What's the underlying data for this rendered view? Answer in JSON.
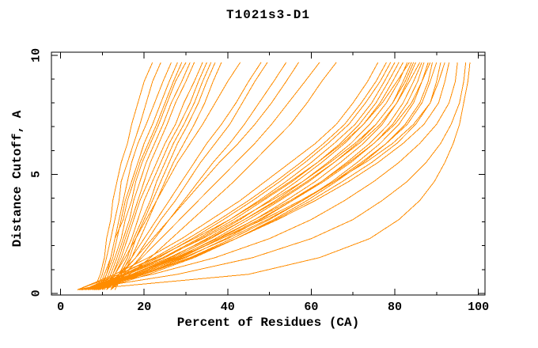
{
  "title": "T1021s3-D1",
  "chart_data": {
    "type": "line",
    "title": "T1021s3-D1",
    "xlabel": "Percent of Residues (CA)",
    "ylabel": "Distance Cutoff, A",
    "xlim": [
      -2.2,
      101.6
    ],
    "ylim": [
      -0.07,
      10.13
    ],
    "x_major_ticks": [
      0,
      20,
      40,
      60,
      80,
      100
    ],
    "x_minor_ticks": [
      10,
      30,
      50,
      70,
      90
    ],
    "y_major_ticks": [
      0,
      5,
      10
    ],
    "y_minor_ticks": [
      1,
      2,
      3,
      4,
      6,
      7,
      8,
      9
    ],
    "grid": "off",
    "legend": "none",
    "line_color": "#ff8c00",
    "axis_color": "#000000",
    "background_color": "#ffffff",
    "y_grid": [
      0.15,
      0.8,
      1.5,
      2.3,
      3.1,
      3.9,
      4.7,
      5.5,
      6.3,
      7.1,
      8.0,
      8.9,
      9.7
    ],
    "series_x": [
      [
        8,
        9.5,
        10.5,
        11,
        12,
        12.5,
        13.5,
        14.5,
        16,
        17,
        18.5,
        20,
        22
      ],
      [
        8.5,
        10,
        11,
        12,
        13,
        14,
        14.5,
        16,
        17.5,
        19,
        20.5,
        22,
        24
      ],
      [
        9,
        10.5,
        12,
        13,
        14,
        15,
        16,
        17,
        18.5,
        20.5,
        22.5,
        24.5,
        26.5
      ],
      [
        9,
        11,
        12.5,
        13.5,
        14.5,
        15.5,
        17,
        18.5,
        20,
        22,
        24,
        26,
        28
      ],
      [
        10,
        11.5,
        13,
        14.5,
        15.5,
        17,
        18,
        19.5,
        21.5,
        23.5,
        25.5,
        27.5,
        30
      ],
      [
        10,
        12,
        13.5,
        15,
        16.5,
        17.5,
        19,
        20.5,
        22.5,
        24.5,
        26.5,
        29,
        31
      ],
      [
        11,
        12.5,
        14,
        15.5,
        17,
        18.5,
        20,
        21.5,
        23.5,
        25.5,
        27.5,
        30,
        32
      ],
      [
        10.5,
        12.5,
        14.5,
        16,
        17.5,
        19,
        21,
        23,
        25,
        27.5,
        29.5,
        32,
        34
      ],
      [
        11,
        13,
        15,
        17,
        18.5,
        20,
        22,
        24,
        26,
        28.5,
        31,
        33,
        35
      ],
      [
        12,
        14,
        16,
        17.5,
        19.5,
        21.5,
        23,
        25,
        27,
        29.5,
        32,
        34,
        36
      ],
      [
        12,
        14.5,
        16.5,
        18,
        20,
        22,
        24,
        26,
        28,
        30.5,
        33,
        35,
        37
      ],
      [
        13,
        15,
        17,
        19,
        21,
        23,
        25,
        27,
        29.5,
        32,
        34.5,
        36.5,
        38.5
      ],
      [
        9.5,
        11,
        12,
        13,
        15,
        16,
        17.5,
        19,
        21,
        23,
        25,
        27,
        29
      ],
      [
        10,
        13,
        15.5,
        18,
        20.5,
        23,
        25.5,
        28,
        31,
        34,
        37,
        40,
        43
      ],
      [
        11,
        14,
        17,
        20,
        23,
        26,
        29,
        32,
        35,
        38.5,
        42,
        45,
        48
      ],
      [
        11,
        14.5,
        18,
        21,
        24,
        27.5,
        30.5,
        33.5,
        37,
        40.5,
        43.5,
        46.5,
        49.5
      ],
      [
        12,
        15.5,
        19,
        22.5,
        26,
        29.5,
        33,
        36.5,
        40.5,
        44,
        47.5,
        51,
        54
      ],
      [
        10,
        14,
        18,
        22,
        26,
        30,
        34,
        38,
        42.5,
        46.5,
        50.5,
        54,
        57
      ],
      [
        11,
        15,
        19.5,
        24,
        28.5,
        33,
        37.5,
        42,
        46.5,
        50.5,
        54.5,
        58.5,
        62
      ],
      [
        12,
        16.5,
        21.5,
        26.5,
        31.5,
        36.5,
        41.5,
        46,
        50.5,
        55,
        59,
        62.5,
        66
      ],
      [
        4,
        13,
        21,
        29,
        36,
        43,
        49,
        55,
        61,
        66,
        70,
        73.5,
        76
      ],
      [
        5.5,
        14,
        22.5,
        30.5,
        38,
        45,
        51.5,
        57.5,
        63,
        68,
        72,
        75.5,
        78
      ],
      [
        6,
        15,
        23.5,
        31.5,
        39,
        46,
        52.5,
        58.5,
        64,
        69,
        73,
        76.5,
        79
      ],
      [
        6,
        15.5,
        24.5,
        33,
        40.5,
        47.5,
        54,
        60,
        65.5,
        70.5,
        74.5,
        77.5,
        80
      ],
      [
        6.5,
        16,
        25,
        33.5,
        41.5,
        48.5,
        55.5,
        61.5,
        67,
        71.5,
        75.5,
        78.5,
        81
      ],
      [
        7,
        17,
        26.5,
        35,
        43,
        50,
        56.5,
        62.5,
        68,
        72.5,
        76.5,
        79.5,
        82
      ],
      [
        7,
        17.5,
        27,
        36,
        44,
        51.5,
        58,
        64,
        69.5,
        74,
        78,
        81,
        83
      ],
      [
        4,
        14,
        23,
        32,
        40.5,
        48,
        55,
        61.5,
        67.5,
        72.5,
        77,
        80.5,
        83.5
      ],
      [
        7.5,
        18,
        28,
        37,
        45,
        52.5,
        59.5,
        65.5,
        71,
        75.5,
        79.5,
        82,
        84
      ],
      [
        8,
        19,
        29,
        38,
        46.5,
        54,
        61,
        67,
        72.5,
        77,
        80.5,
        83,
        85
      ],
      [
        6,
        16,
        26,
        35.5,
        44,
        52,
        59,
        65.5,
        71.5,
        76.5,
        80.5,
        83.5,
        86
      ],
      [
        8,
        19.5,
        30,
        39.5,
        48,
        55.5,
        62.5,
        68.5,
        74,
        78.5,
        82,
        84.5,
        86.5
      ],
      [
        7,
        18,
        28.5,
        38.5,
        47.5,
        55.5,
        63,
        69.5,
        75,
        79.5,
        83,
        85.5,
        87
      ],
      [
        8.5,
        20,
        31,
        41,
        50,
        58,
        65,
        71,
        76.5,
        81,
        84.5,
        86.5,
        88
      ],
      [
        6.5,
        17,
        27.5,
        37.5,
        46.5,
        55,
        62.5,
        69,
        75,
        80,
        84,
        86.5,
        88.5
      ],
      [
        9,
        21,
        32,
        42,
        51,
        59,
        66,
        72.5,
        78,
        82.5,
        86,
        88,
        89
      ],
      [
        7,
        18.5,
        29.5,
        40,
        49.5,
        58,
        65.5,
        72,
        78,
        83,
        86.5,
        88.5,
        90
      ],
      [
        8,
        20,
        31.5,
        42,
        51.5,
        60,
        67.5,
        74.5,
        80.5,
        85,
        88.5,
        90,
        91
      ],
      [
        6,
        17,
        28,
        38.5,
        48.5,
        57.5,
        65.5,
        73,
        79.5,
        84.5,
        88.5,
        90.5,
        92
      ],
      [
        7.5,
        19.5,
        31,
        42,
        52,
        61,
        69,
        76,
        82,
        87,
        90.5,
        92,
        93
      ],
      [
        5.5,
        15,
        24.5,
        34,
        42.5,
        50.5,
        58,
        64.5,
        70.5,
        75.5,
        79.5,
        82.5,
        84.5
      ],
      [
        4,
        22,
        37,
        50,
        60,
        68,
        75,
        81,
        86,
        90,
        93,
        94.5,
        95
      ],
      [
        4.5,
        28,
        46,
        60,
        70,
        77,
        83,
        87.5,
        91,
        93.5,
        95.5,
        96.5,
        97
      ],
      [
        5,
        45,
        62,
        74,
        81,
        86,
        89.5,
        92,
        94,
        95.5,
        96.5,
        97.5,
        98
      ]
    ]
  }
}
